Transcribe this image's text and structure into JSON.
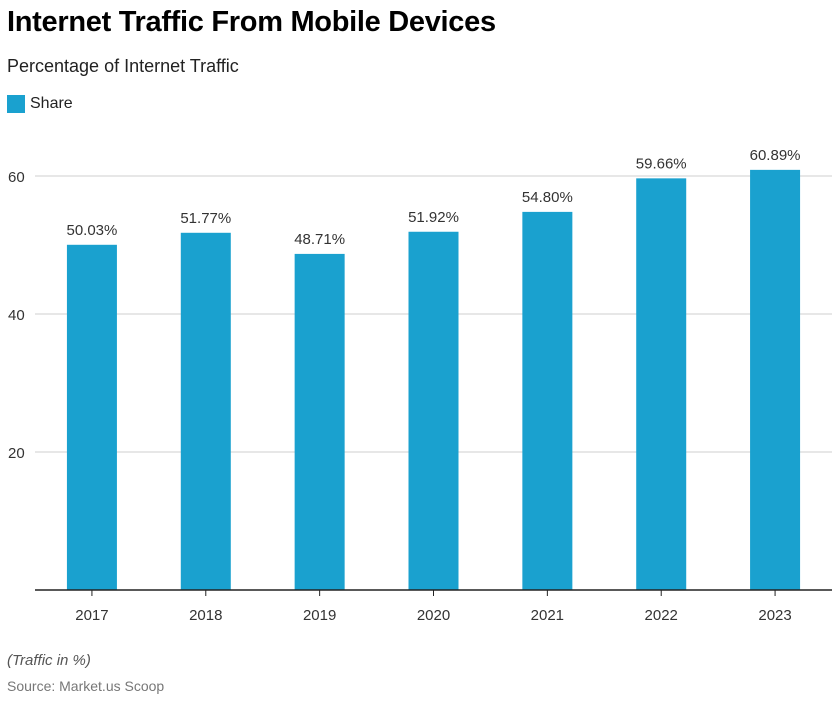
{
  "header": {
    "title": "Internet Traffic From Mobile Devices",
    "subtitle": "Percentage of Internet Traffic"
  },
  "legend": {
    "label": "Share"
  },
  "colors": {
    "bar": "#1aa1cf",
    "grid": "#cfcfcf",
    "axis": "#222222"
  },
  "chart_data": {
    "type": "bar",
    "categories": [
      "2017",
      "2018",
      "2019",
      "2020",
      "2021",
      "2022",
      "2023"
    ],
    "series": [
      {
        "name": "Share",
        "values": [
          50.03,
          51.77,
          48.71,
          51.92,
          54.8,
          59.66,
          60.89
        ]
      }
    ],
    "data_labels": [
      "50.03%",
      "51.77%",
      "48.71%",
      "51.92%",
      "54.80%",
      "59.66%",
      "60.89%"
    ],
    "title": "Internet Traffic From Mobile Devices",
    "subtitle": "Percentage of Internet Traffic",
    "xlabel": "",
    "ylabel": "",
    "ylim": [
      0,
      60
    ],
    "yticks": [
      20,
      40,
      60
    ],
    "grid": true,
    "legend_position": "top-left"
  },
  "footer": {
    "note": "(Traffic in %)",
    "source": "Source: Market.us Scoop"
  }
}
